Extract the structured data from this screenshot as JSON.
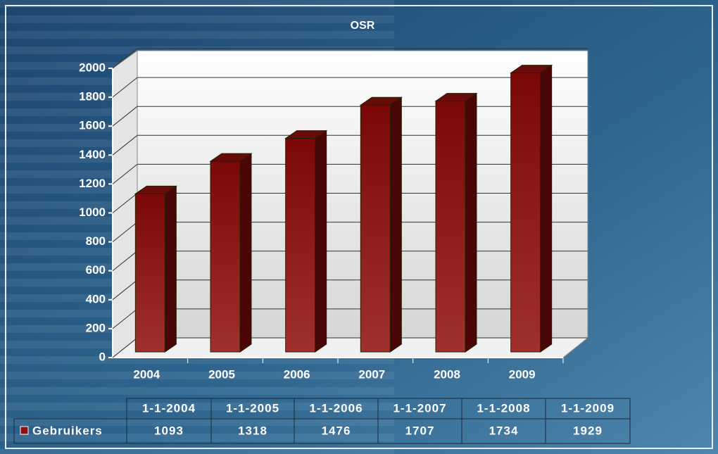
{
  "chart_data": {
    "type": "bar",
    "title": "OSR",
    "categories": [
      "2004",
      "2005",
      "2006",
      "2007",
      "2008",
      "2009"
    ],
    "series": [
      {
        "name": "Gebruikers",
        "color": "#8b1010",
        "values": [
          1093,
          1318,
          1476,
          1707,
          1734,
          1929
        ]
      }
    ],
    "ylim": [
      0,
      2000
    ],
    "yticks": [
      0,
      200,
      400,
      600,
      800,
      1000,
      1200,
      1400,
      1600,
      1800,
      2000
    ],
    "grid": true,
    "table_columns": [
      "1-1-2004",
      "1-1-2005",
      "1-1-2006",
      "1-1-2007",
      "1-1-2008",
      "1-1-2009"
    ]
  }
}
